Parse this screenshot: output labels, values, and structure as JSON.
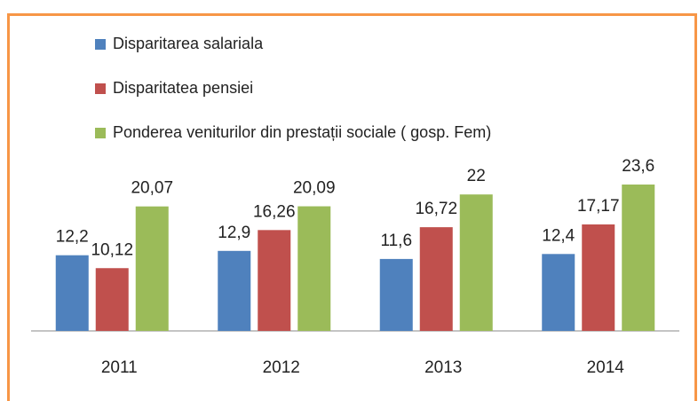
{
  "chart_data": {
    "type": "bar",
    "categories": [
      "2011",
      "2012",
      "2013",
      "2014"
    ],
    "series": [
      {
        "name": "Disparitarea salariala",
        "color": "#4f81bd",
        "values": [
          12.2,
          12.9,
          11.6,
          12.4
        ],
        "value_labels": [
          "12,2",
          "12,9",
          "11,6",
          "12,4"
        ]
      },
      {
        "name": "Disparitatea pensiei",
        "color": "#c0504d",
        "values": [
          10.12,
          16.26,
          16.72,
          17.17
        ],
        "value_labels": [
          "10,12",
          "16,26",
          "16,72",
          "17,17"
        ]
      },
      {
        "name": "Ponderea veniturilor din prestații sociale ( gosp. Fem)",
        "color": "#9bbb59",
        "values": [
          20.07,
          20.09,
          22,
          23.6
        ],
        "value_labels": [
          "20,07",
          "20,09",
          "22",
          "23,6"
        ]
      }
    ]
  }
}
